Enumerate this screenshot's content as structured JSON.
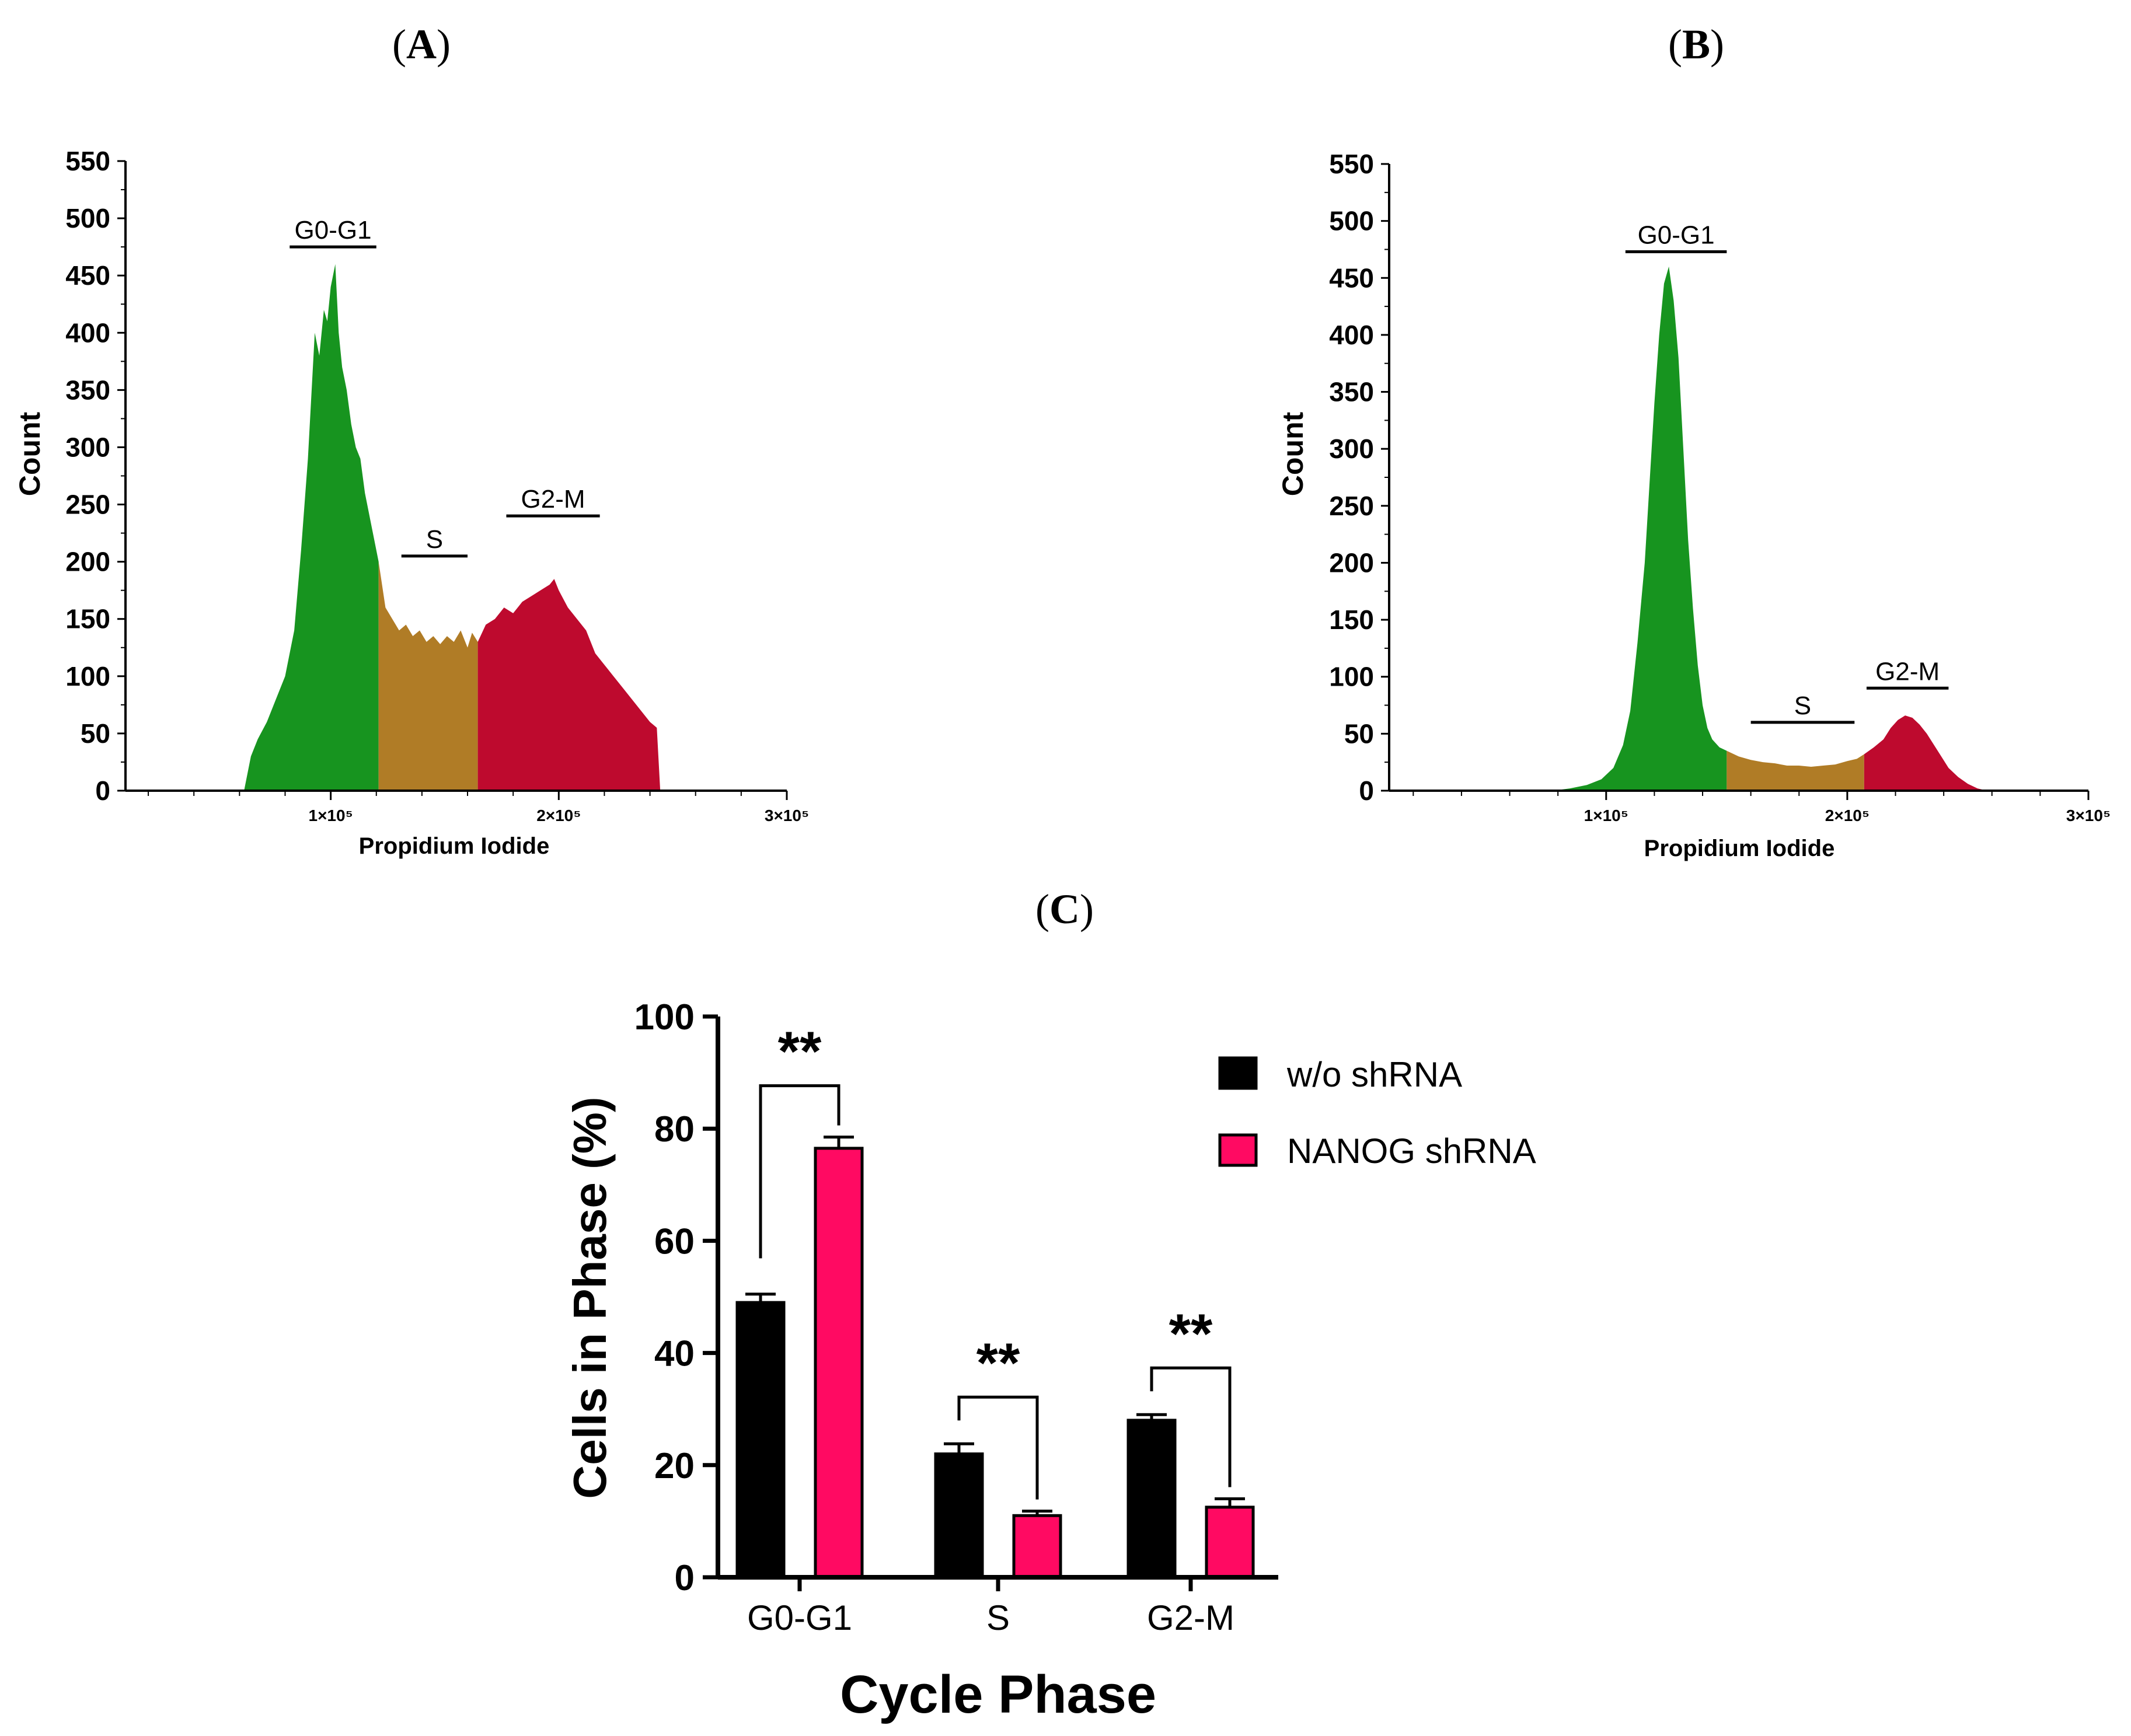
{
  "panels": {
    "a": "A",
    "b": "B",
    "c": "C"
  },
  "colors": {
    "g0g1": "#17941F",
    "s": "#B07C26",
    "g2m": "#BE0A2E",
    "wo_shrna": "#000000",
    "nanog_shrna": "#FF0A62"
  },
  "chart_data": [
    {
      "id": "A",
      "type": "area",
      "title": "(A)",
      "xlabel": "Propidium Iodide",
      "ylabel": "Count",
      "xlim": [
        10000,
        300000
      ],
      "ylim": [
        0,
        550
      ],
      "yticks": [
        "0",
        "50",
        "100",
        "150",
        "200",
        "250",
        "300",
        "350",
        "400",
        "450",
        "500",
        "550"
      ],
      "xticks": [
        {
          "value": 100000,
          "label": "1×10⁵"
        },
        {
          "value": 200000,
          "label": "2×10⁵"
        },
        {
          "value": 300000,
          "label": "3×10⁵"
        }
      ],
      "gates": [
        {
          "name": "G0-G1",
          "from": 82000,
          "to": 120000,
          "level": 475
        },
        {
          "name": "S",
          "from": 131000,
          "to": 160000,
          "level": 205
        },
        {
          "name": "G2-M",
          "from": 177000,
          "to": 218000,
          "level": 240
        }
      ],
      "series": [
        {
          "name": "G0-G1",
          "color_key": "g0g1",
          "x": [
            62000,
            65000,
            68000,
            72000,
            76000,
            80000,
            84000,
            87000,
            90000,
            93000,
            95000,
            97000,
            98500,
            100000,
            102000,
            103500,
            105000,
            107000,
            109000,
            111000,
            113000,
            115000,
            117000,
            119000,
            121000
          ],
          "y": [
            0,
            30,
            45,
            60,
            80,
            100,
            140,
            210,
            290,
            400,
            380,
            420,
            410,
            440,
            460,
            400,
            370,
            350,
            320,
            300,
            290,
            260,
            240,
            220,
            200
          ]
        },
        {
          "name": "S",
          "color_key": "s",
          "x": [
            121000,
            124000,
            127000,
            130000,
            133000,
            136000,
            139000,
            142000,
            145000,
            148000,
            151000,
            154000,
            157000,
            160000,
            162000,
            164500
          ],
          "y": [
            200,
            160,
            150,
            140,
            145,
            135,
            140,
            130,
            135,
            128,
            135,
            130,
            140,
            125,
            138,
            130
          ]
        },
        {
          "name": "G2-M",
          "color_key": "g2m",
          "x": [
            164500,
            168000,
            172000,
            176000,
            180000,
            184000,
            188000,
            192000,
            196000,
            198000,
            200000,
            204000,
            208000,
            212000,
            216000,
            220000,
            224000,
            228000,
            232000,
            236000,
            240000,
            243000,
            244500
          ],
          "y": [
            130,
            145,
            150,
            160,
            155,
            165,
            170,
            175,
            180,
            185,
            175,
            160,
            150,
            140,
            120,
            110,
            100,
            90,
            80,
            70,
            60,
            55,
            0
          ]
        }
      ]
    },
    {
      "id": "B",
      "type": "area",
      "title": "(B)",
      "xlabel": "Propidium Iodide",
      "ylabel": "Count",
      "xlim": [
        10000,
        300000
      ],
      "ylim": [
        0,
        550
      ],
      "yticks": [
        "0",
        "50",
        "100",
        "150",
        "200",
        "250",
        "300",
        "350",
        "400",
        "450",
        "500",
        "550"
      ],
      "xticks": [
        {
          "value": 100000,
          "label": "1×10⁵"
        },
        {
          "value": 200000,
          "label": "2×10⁵"
        },
        {
          "value": 300000,
          "label": "3×10⁵"
        }
      ],
      "gates": [
        {
          "name": "G0-G1",
          "from": 108000,
          "to": 150000,
          "level": 473
        },
        {
          "name": "S",
          "from": 160000,
          "to": 203000,
          "level": 60
        },
        {
          "name": "G2-M",
          "from": 208000,
          "to": 242000,
          "level": 90
        }
      ],
      "series": [
        {
          "name": "G0-G1",
          "color_key": "g0g1",
          "x": [
            78000,
            85000,
            92000,
            98000,
            103000,
            107000,
            110000,
            113000,
            116000,
            118000,
            120000,
            122000,
            124000,
            126000,
            128000,
            130000,
            132000,
            134000,
            136000,
            138000,
            140000,
            142000,
            144000,
            147000,
            150000
          ],
          "y": [
            0,
            2,
            5,
            10,
            20,
            40,
            70,
            130,
            200,
            270,
            340,
            400,
            445,
            460,
            430,
            380,
            300,
            220,
            160,
            110,
            75,
            55,
            45,
            38,
            35
          ]
        },
        {
          "name": "S",
          "color_key": "s",
          "x": [
            150000,
            155000,
            160000,
            165000,
            170000,
            175000,
            180000,
            185000,
            190000,
            195000,
            200000,
            204000,
            207000
          ],
          "y": [
            35,
            30,
            27,
            25,
            24,
            22,
            22,
            21,
            22,
            23,
            26,
            28,
            32
          ]
        },
        {
          "name": "G2-M",
          "color_key": "g2m",
          "x": [
            207000,
            211000,
            215000,
            218000,
            221000,
            224000,
            227000,
            230000,
            233000,
            236000,
            239000,
            242000,
            246000,
            250000,
            254000,
            258000
          ],
          "y": [
            32,
            38,
            45,
            55,
            62,
            66,
            64,
            58,
            50,
            40,
            30,
            20,
            12,
            6,
            2,
            0
          ]
        }
      ]
    },
    {
      "id": "C",
      "type": "bar",
      "title": "(C)",
      "xlabel": "Cycle Phase",
      "ylabel": "Cells in Phase (%)",
      "ylim": [
        0,
        100
      ],
      "yticks": [
        "0",
        "20",
        "40",
        "60",
        "80",
        "100"
      ],
      "categories": [
        "G0-G1",
        "S",
        "G2-M"
      ],
      "series": [
        {
          "name": "w/o shRNA",
          "color_key": "wo_shrna",
          "values": [
            49,
            22,
            28
          ],
          "errors": [
            1.5,
            1.8,
            1.0
          ]
        },
        {
          "name": "NANOG shRNA",
          "color_key": "nanog_shrna",
          "values": [
            76.5,
            11,
            12.5
          ],
          "errors": [
            2.0,
            0.8,
            1.5
          ]
        }
      ],
      "significance": [
        "**",
        "**",
        "**"
      ]
    }
  ]
}
